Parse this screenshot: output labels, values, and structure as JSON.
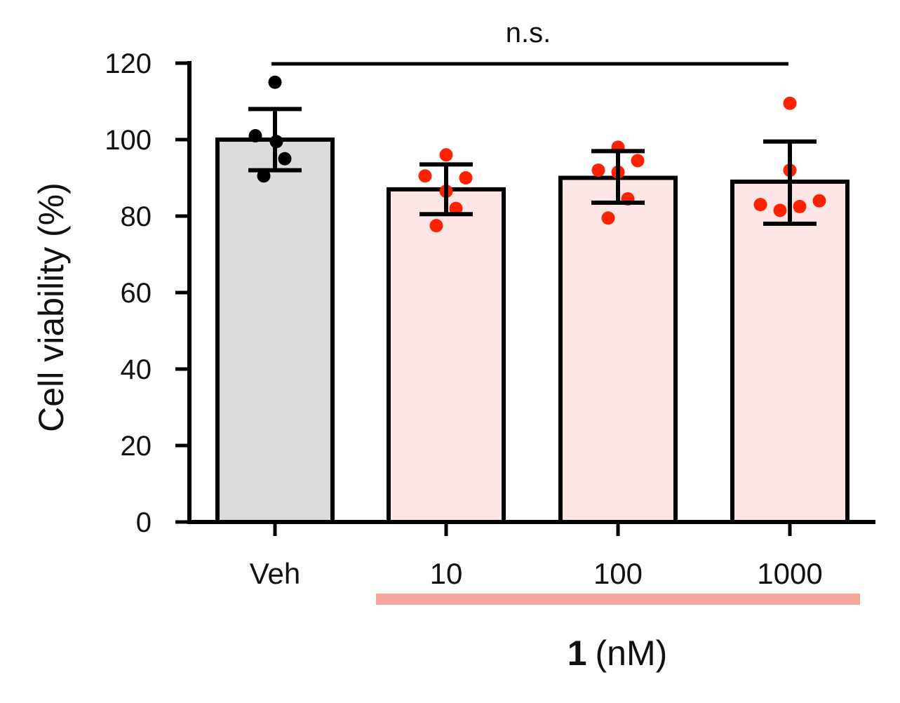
{
  "chart_data": {
    "type": "bar",
    "ylabel": "Cell viability (%)",
    "ylim": [
      0,
      120
    ],
    "yticks": [
      0,
      20,
      40,
      60,
      80,
      100,
      120
    ],
    "categories": [
      "Veh",
      "10",
      "100",
      "1000"
    ],
    "values": [
      100,
      87,
      90,
      89
    ],
    "error_upper": [
      108,
      93.5,
      97,
      99.5
    ],
    "error_lower": [
      92,
      80.5,
      83.5,
      78
    ],
    "points": [
      [
        115,
        101,
        99.5,
        95,
        90.5
      ],
      [
        96,
        90.5,
        90,
        86.5,
        82,
        77.5
      ],
      [
        98,
        94.5,
        92,
        91.5,
        84.5,
        79.5
      ],
      [
        109.5,
        92,
        84,
        83,
        82.5,
        81.5
      ]
    ],
    "bar_fills": [
      "#dcdcdc",
      "#fde6e6",
      "#fde6e6",
      "#fde6e6"
    ],
    "point_colors": [
      "#000000",
      "#ff2200",
      "#ff2200",
      "#ff2200"
    ],
    "significance": {
      "label": "n.s.",
      "from": "Veh",
      "to": "1000"
    },
    "treatment": {
      "compound": "1",
      "unit": "(nM)",
      "groups": [
        "10",
        "100",
        "1000"
      ],
      "bar_color": "#f7a59b"
    }
  }
}
